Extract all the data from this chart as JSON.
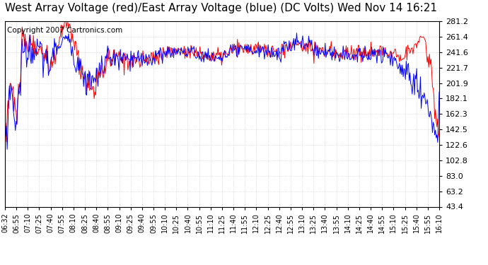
{
  "title": "West Array Voltage (red)/East Array Voltage (blue) (DC Volts) Wed Nov 14 16:21",
  "copyright": "Copyright 2007 Cartronics.com",
  "yticks": [
    281.2,
    261.4,
    241.6,
    221.7,
    201.9,
    182.1,
    162.3,
    142.5,
    122.6,
    102.8,
    83.0,
    63.2,
    43.4
  ],
  "ymin": 43.4,
  "ymax": 281.2,
  "xtick_labels": [
    "06:32",
    "06:55",
    "07:10",
    "07:25",
    "07:40",
    "07:55",
    "08:10",
    "08:25",
    "08:40",
    "08:55",
    "09:10",
    "09:25",
    "09:40",
    "09:55",
    "10:10",
    "10:25",
    "10:40",
    "10:55",
    "11:10",
    "11:25",
    "11:40",
    "11:55",
    "12:10",
    "12:25",
    "12:40",
    "12:55",
    "13:10",
    "13:25",
    "13:40",
    "13:55",
    "14:10",
    "14:25",
    "14:40",
    "14:55",
    "15:10",
    "15:25",
    "15:40",
    "15:55",
    "16:10"
  ],
  "background_color": "#ffffff",
  "grid_color": "#c8c8c8",
  "red_color": "#ff0000",
  "blue_color": "#0000ff",
  "title_fontsize": 11,
  "copyright_fontsize": 7.5
}
